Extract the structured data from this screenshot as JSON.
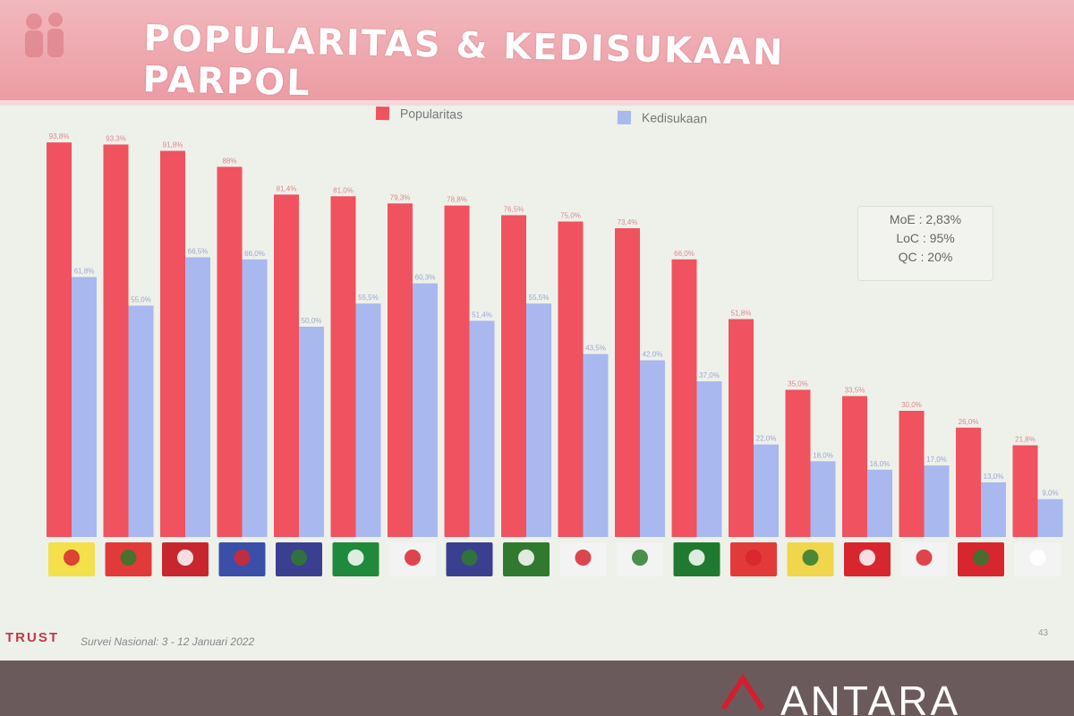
{
  "title": "POPULARITAS & KEDISUKAAN PARPOL",
  "stats": {
    "moe": "MoE : 2,83%",
    "loc": "LoC : 95%",
    "qc": "QC : 20%"
  },
  "footer": {
    "brand": "TRUST",
    "note": "Survei Nasional: 3 - 12 Januari 2022",
    "page": "43"
  },
  "watermark": "ANTARA",
  "colors": {
    "popularitas": "#f0525f",
    "kedisukaan": "#a9b8ef",
    "background": "#eef1ea"
  },
  "party_logos": [
    "golkar-logo",
    "pdip-logo",
    "gerindra-logo",
    "demokrat-logo",
    "nasdem-logo",
    "pkb-logo",
    "pks-logo",
    "pan-logo",
    "ppp-logo",
    "perindo-logo",
    "hanura-logo",
    "pbb-logo",
    "psi-logo",
    "berkarya-logo",
    "garuda-logo",
    "gelora-logo",
    "pkp-logo",
    "ummat-logo"
  ],
  "chart_data": {
    "type": "bar",
    "legend_position": "top",
    "grid": false,
    "ylim": [
      0,
      100
    ],
    "categories": [
      "1",
      "2",
      "3",
      "4",
      "5",
      "6",
      "7",
      "8",
      "9",
      "10",
      "11",
      "12",
      "13",
      "14",
      "15",
      "16",
      "17",
      "18"
    ],
    "series": [
      {
        "name": "Popularitas",
        "color": "#f0525f",
        "values": [
          93.8,
          93.3,
          91.8,
          88,
          81.4,
          81.0,
          79.3,
          78.8,
          76.5,
          75.0,
          73.4,
          66.0,
          51.8,
          35.0,
          33.5,
          30.0,
          26.0,
          21.8
        ]
      },
      {
        "name": "Kedisukaan",
        "color": "#a9b8ef",
        "values": [
          61.8,
          55.0,
          66.5,
          66.0,
          50.0,
          55.5,
          60.3,
          51.4,
          55.5,
          43.5,
          42.0,
          37.0,
          22.0,
          18.0,
          16.0,
          17.0,
          13.0,
          9.0
        ]
      }
    ],
    "value_labels": {
      "popularitas": [
        "93,8%",
        "93,3%",
        "91,8%",
        "88%",
        "81,4%",
        "81,0%",
        "79,3%",
        "78,8%",
        "76,5%",
        "75,0%",
        "73,4%",
        "66,0%",
        "51,8%",
        "35,0%",
        "33,5%",
        "30,0%",
        "26,0%",
        "21,8%"
      ],
      "kedisukaan": [
        "61,8%",
        "55,0%",
        "66,5%",
        "66,0%",
        "50,0%",
        "55,5%",
        "60,3%",
        "51,4%",
        "55,5%",
        "43,5%",
        "42,0%",
        "37,0%",
        "22,0%",
        "18,0%",
        "16,0%",
        "17,0%",
        "13,0%",
        "9,0%"
      ]
    }
  }
}
